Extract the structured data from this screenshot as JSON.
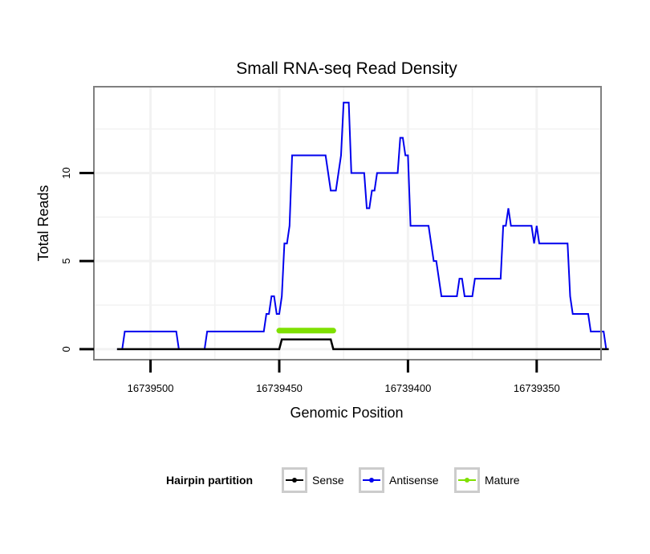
{
  "chart_data": {
    "type": "line",
    "title": "Small RNA-seq Read Density",
    "xlabel": "Genomic Position",
    "ylabel": "Total Reads",
    "xlim": [
      16739522,
      16739325
    ],
    "x_reversed": true,
    "ylim": [
      -0.6,
      14.9
    ],
    "x_ticks": [
      16739500,
      16739450,
      16739400,
      16739350
    ],
    "x_tick_labels": [
      "16739500",
      "16739450",
      "16739400",
      "16739350"
    ],
    "y_ticks": [
      0,
      5,
      10
    ],
    "y_tick_labels": [
      "0",
      "5",
      "10"
    ],
    "grid": true,
    "legend": {
      "title": "Hairpin partition",
      "position": "bottom",
      "items": [
        {
          "label": "Sense",
          "color": "#000000"
        },
        {
          "label": "Antisense",
          "color": "#0000ee"
        },
        {
          "label": "Mature",
          "color": "#7fe000"
        }
      ]
    },
    "series": [
      {
        "name": "Sense",
        "color": "#000000",
        "width": 2.5,
        "points": [
          [
            16739513,
            0
          ],
          [
            16739450,
            0
          ],
          [
            16739449,
            0.55
          ],
          [
            16739430,
            0.55
          ],
          [
            16739429,
            0
          ],
          [
            16739322,
            0
          ]
        ]
      },
      {
        "name": "Antisense",
        "color": "#0000ee",
        "width": 2,
        "points": [
          [
            16739513,
            0
          ],
          [
            16739511,
            0
          ],
          [
            16739510,
            1
          ],
          [
            16739490,
            1
          ],
          [
            16739489,
            0
          ],
          [
            16739479,
            0
          ],
          [
            16739478,
            1
          ],
          [
            16739456,
            1
          ],
          [
            16739455,
            2
          ],
          [
            16739454,
            2
          ],
          [
            16739453,
            3
          ],
          [
            16739452,
            3
          ],
          [
            16739451,
            2
          ],
          [
            16739450,
            2
          ],
          [
            16739449,
            3
          ],
          [
            16739448,
            6
          ],
          [
            16739447,
            6
          ],
          [
            16739446,
            7
          ],
          [
            16739445,
            11
          ],
          [
            16739432,
            11
          ],
          [
            16739430,
            9
          ],
          [
            16739428,
            9
          ],
          [
            16739426,
            11
          ],
          [
            16739425,
            14
          ],
          [
            16739423,
            14
          ],
          [
            16739422,
            10
          ],
          [
            16739417,
            10
          ],
          [
            16739416,
            8
          ],
          [
            16739415,
            8
          ],
          [
            16739414,
            9
          ],
          [
            16739413,
            9
          ],
          [
            16739412,
            10
          ],
          [
            16739404,
            10
          ],
          [
            16739403,
            12
          ],
          [
            16739402,
            12
          ],
          [
            16739401,
            11
          ],
          [
            16739400,
            11
          ],
          [
            16739399,
            7
          ],
          [
            16739392,
            7
          ],
          [
            16739391,
            6
          ],
          [
            16739390,
            5
          ],
          [
            16739389,
            5
          ],
          [
            16739387,
            3
          ],
          [
            16739381,
            3
          ],
          [
            16739380,
            4
          ],
          [
            16739379,
            4
          ],
          [
            16739378,
            3
          ],
          [
            16739375,
            3
          ],
          [
            16739374,
            4
          ],
          [
            16739364,
            4
          ],
          [
            16739363,
            7
          ],
          [
            16739362,
            7
          ],
          [
            16739361,
            8
          ],
          [
            16739360,
            7
          ],
          [
            16739352,
            7
          ],
          [
            16739351,
            6
          ],
          [
            16739350,
            7
          ],
          [
            16739349,
            6
          ],
          [
            16739338,
            6
          ],
          [
            16739337,
            3
          ],
          [
            16739336,
            2
          ],
          [
            16739330,
            2
          ],
          [
            16739329,
            1
          ],
          [
            16739324,
            1
          ],
          [
            16739323,
            0
          ]
        ]
      },
      {
        "name": "Mature",
        "color": "#7fe000",
        "width": 7,
        "points": [
          [
            16739450,
            1.05
          ],
          [
            16739429,
            1.05
          ]
        ]
      }
    ]
  }
}
